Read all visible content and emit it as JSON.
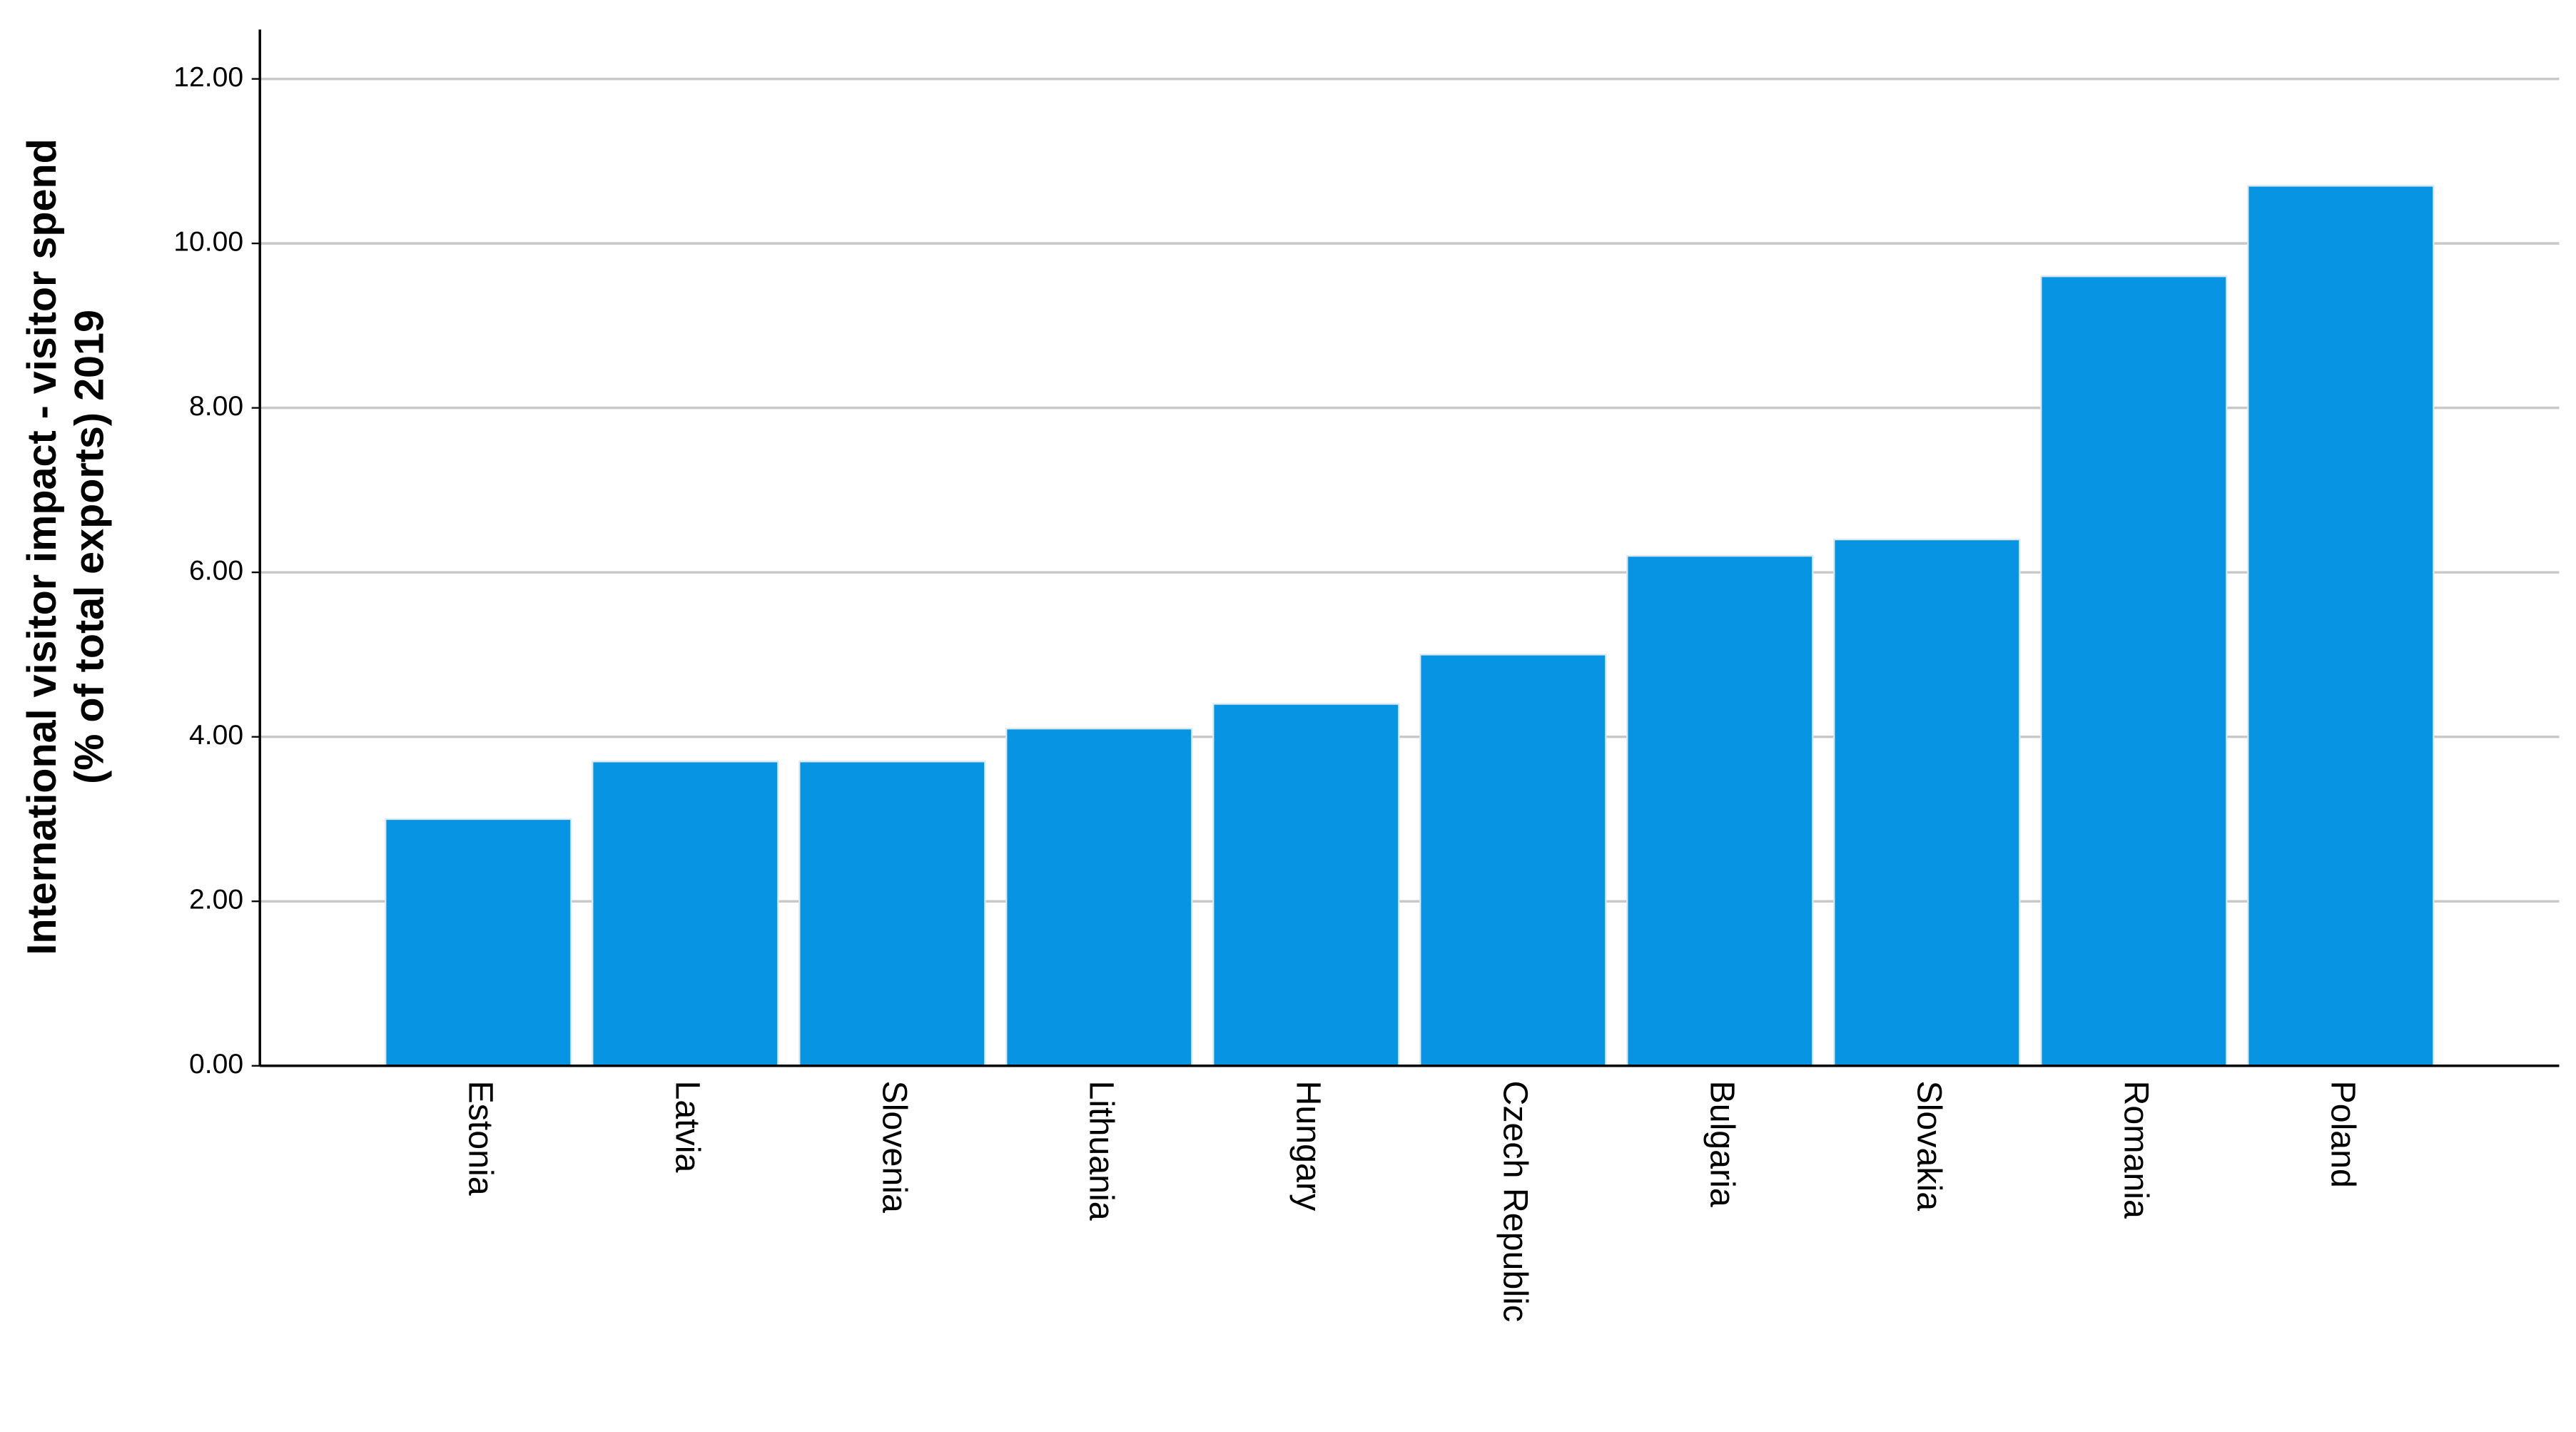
{
  "chart_data": {
    "type": "bar",
    "y_label": [
      "International visitor impact - visitor spend",
      "(% of total exports) 2019"
    ],
    "categories": [
      "Estonia",
      "Latvia",
      "Slovenia",
      "Lithuania",
      "Hungary",
      "Czech Republic",
      "Bulgaria",
      "Slovakia",
      "Romania",
      "Poland"
    ],
    "values": [
      3.0,
      3.7,
      3.7,
      4.1,
      4.4,
      5.0,
      6.2,
      6.4,
      9.6,
      10.7
    ],
    "color": "#0794e3",
    "ylim": [
      0,
      12.6
    ],
    "yticks": [
      {
        "value": 0,
        "label": "0.00"
      },
      {
        "value": 2,
        "label": "2.00"
      },
      {
        "value": 4,
        "label": "4.00"
      },
      {
        "value": 6,
        "label": "6.00"
      },
      {
        "value": 8,
        "label": "8.00"
      },
      {
        "value": 10,
        "label": "10.00"
      },
      {
        "value": 12,
        "label": "12.00"
      }
    ],
    "grid": true
  }
}
